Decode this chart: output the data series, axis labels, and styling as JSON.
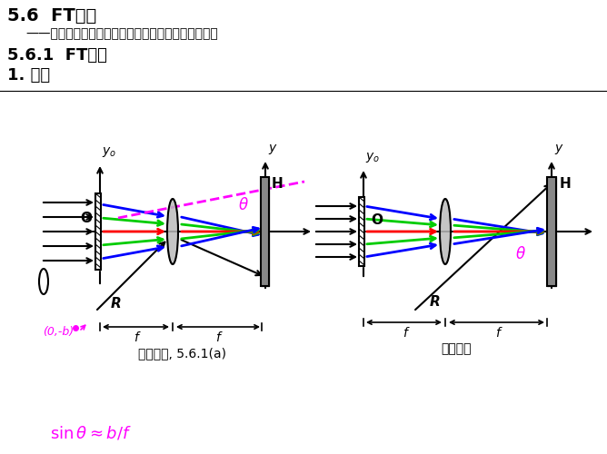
{
  "title1": "5.6  FT全息",
  "subtitle": "——参考光波与物体（或图像）的频谱干涉记录全息图",
  "title2": "5.6.1  FT全息",
  "title3": "1. 记录",
  "caption1": "记录光路, 5.6.1(a)",
  "caption2": "记录光路",
  "bg_color": "#ffffff",
  "magenta": "#ff00ff",
  "blue": "#0000ff",
  "green": "#00cc00",
  "red": "#ff0000",
  "black": "#000000",
  "gray": "#888888"
}
